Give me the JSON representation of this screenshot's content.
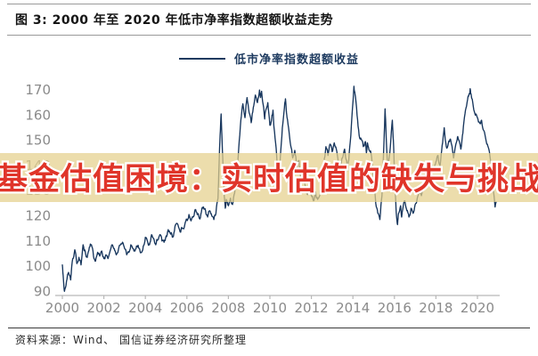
{
  "header": {
    "title": "图 3: 2000 年至 2020 年低市净率指数超额收益走势"
  },
  "legend": {
    "label": "低市净率指数超额收益"
  },
  "watermark": {
    "text": "基金估值困境：实时估值的缺失与挑战",
    "text_color": "#e0352a",
    "band_color": "rgba(228,208,140,0.72)"
  },
  "footer": {
    "source": "资料来源：Wind、 国信证券经济研究所整理"
  },
  "colors": {
    "series_line": "#17365d",
    "axis_line": "#b8b8b8",
    "tick_label": "#8a8a8a"
  },
  "chart_data": {
    "type": "line",
    "title": "图 3: 2000 年至 2020 年低市净率指数超额收益走势",
    "xlabel": "",
    "ylabel": "",
    "xlim": [
      1999.9,
      2021.2
    ],
    "ylim": [
      88,
      175
    ],
    "xticks": [
      2000,
      2002,
      2004,
      2006,
      2008,
      2010,
      2012,
      2014,
      2016,
      2018,
      2020
    ],
    "yticks": [
      90,
      100,
      110,
      120,
      130,
      140,
      150,
      160,
      170
    ],
    "grid": false,
    "legend_position": "top",
    "series": [
      {
        "name": "低市净率指数超额收益",
        "points": [
          [
            2000.0,
            100.5
          ],
          [
            2000.05,
            95
          ],
          [
            2000.1,
            90
          ],
          [
            2000.2,
            94
          ],
          [
            2000.3,
            97.5
          ],
          [
            2000.4,
            94.5
          ],
          [
            2000.5,
            103
          ],
          [
            2000.6,
            106.5
          ],
          [
            2000.7,
            101
          ],
          [
            2000.8,
            103.5
          ],
          [
            2000.9,
            100.5
          ],
          [
            2001.0,
            108.5
          ],
          [
            2001.1,
            106
          ],
          [
            2001.2,
            103.5
          ],
          [
            2001.3,
            107.5
          ],
          [
            2001.4,
            108.5
          ],
          [
            2001.5,
            104
          ],
          [
            2001.6,
            102
          ],
          [
            2001.7,
            105.5
          ],
          [
            2001.8,
            104
          ],
          [
            2001.9,
            106
          ],
          [
            2002.0,
            103
          ],
          [
            2002.1,
            104.5
          ],
          [
            2002.2,
            103
          ],
          [
            2002.3,
            106
          ],
          [
            2002.4,
            108.5
          ],
          [
            2002.5,
            107
          ],
          [
            2002.6,
            104.5
          ],
          [
            2002.7,
            106.5
          ],
          [
            2002.8,
            108.5
          ],
          [
            2002.9,
            109.5
          ],
          [
            2003.0,
            107
          ],
          [
            2003.1,
            104.5
          ],
          [
            2003.2,
            105.5
          ],
          [
            2003.3,
            108.5
          ],
          [
            2003.4,
            107
          ],
          [
            2003.5,
            106
          ],
          [
            2003.6,
            108
          ],
          [
            2003.7,
            107
          ],
          [
            2003.8,
            105.5
          ],
          [
            2003.9,
            108
          ],
          [
            2004.0,
            111.5
          ],
          [
            2004.1,
            110
          ],
          [
            2004.2,
            108.5
          ],
          [
            2004.3,
            112.5
          ],
          [
            2004.4,
            111
          ],
          [
            2004.5,
            108.5
          ],
          [
            2004.6,
            110.5
          ],
          [
            2004.7,
            112.5
          ],
          [
            2004.8,
            110
          ],
          [
            2004.9,
            109.5
          ],
          [
            2005.0,
            112
          ],
          [
            2005.1,
            114.5
          ],
          [
            2005.2,
            113
          ],
          [
            2005.3,
            111.5
          ],
          [
            2005.4,
            114
          ],
          [
            2005.5,
            117
          ],
          [
            2005.6,
            115.5
          ],
          [
            2005.7,
            113.5
          ],
          [
            2005.8,
            115
          ],
          [
            2005.9,
            116.5
          ],
          [
            2006.0,
            118.5
          ],
          [
            2006.1,
            120.5
          ],
          [
            2006.2,
            118
          ],
          [
            2006.3,
            119.5
          ],
          [
            2006.4,
            122.5
          ],
          [
            2006.5,
            120.5
          ],
          [
            2006.6,
            119
          ],
          [
            2006.7,
            121.5
          ],
          [
            2006.8,
            123.5
          ],
          [
            2006.9,
            122
          ],
          [
            2007.0,
            119.5
          ],
          [
            2007.1,
            122
          ],
          [
            2007.2,
            120
          ],
          [
            2007.3,
            118.5
          ],
          [
            2007.4,
            121
          ],
          [
            2007.5,
            127
          ],
          [
            2007.55,
            140
          ],
          [
            2007.6,
            152
          ],
          [
            2007.65,
            160.5
          ],
          [
            2007.7,
            149
          ],
          [
            2007.75,
            138
          ],
          [
            2007.8,
            128
          ],
          [
            2007.85,
            123
          ],
          [
            2007.9,
            126.5
          ],
          [
            2008.0,
            124
          ],
          [
            2008.1,
            127
          ],
          [
            2008.2,
            124.5
          ],
          [
            2008.3,
            129
          ],
          [
            2008.4,
            136
          ],
          [
            2008.5,
            147
          ],
          [
            2008.6,
            158
          ],
          [
            2008.7,
            164.5
          ],
          [
            2008.8,
            159
          ],
          [
            2008.9,
            167
          ],
          [
            2009.0,
            161
          ],
          [
            2009.1,
            157
          ],
          [
            2009.2,
            163
          ],
          [
            2009.3,
            168
          ],
          [
            2009.4,
            165
          ],
          [
            2009.5,
            170
          ],
          [
            2009.55,
            167
          ],
          [
            2009.6,
            169.5
          ],
          [
            2009.7,
            163
          ],
          [
            2009.75,
            158.5
          ],
          [
            2009.8,
            162
          ],
          [
            2009.9,
            165
          ],
          [
            2010.0,
            156
          ],
          [
            2010.1,
            160
          ],
          [
            2010.15,
            162
          ],
          [
            2010.2,
            155
          ],
          [
            2010.3,
            147
          ],
          [
            2010.4,
            133
          ],
          [
            2010.45,
            131
          ],
          [
            2010.5,
            143
          ],
          [
            2010.6,
            155
          ],
          [
            2010.7,
            163
          ],
          [
            2010.75,
            166.5
          ],
          [
            2010.8,
            161
          ],
          [
            2010.9,
            155
          ],
          [
            2011.0,
            148
          ],
          [
            2011.1,
            143
          ],
          [
            2011.2,
            146
          ],
          [
            2011.3,
            139
          ],
          [
            2011.4,
            142
          ],
          [
            2011.5,
            134
          ],
          [
            2011.6,
            138
          ],
          [
            2011.7,
            132
          ],
          [
            2011.8,
            128.5
          ],
          [
            2011.9,
            131.5
          ],
          [
            2012.0,
            128
          ],
          [
            2012.1,
            126
          ],
          [
            2012.2,
            129.5
          ],
          [
            2012.3,
            126.5
          ],
          [
            2012.4,
            128
          ],
          [
            2012.5,
            133
          ],
          [
            2012.6,
            141
          ],
          [
            2012.7,
            147.5
          ],
          [
            2012.8,
            144
          ],
          [
            2012.9,
            148.5
          ],
          [
            2013.0,
            145.5
          ],
          [
            2013.1,
            149
          ],
          [
            2013.2,
            146.5
          ],
          [
            2013.3,
            141
          ],
          [
            2013.4,
            138.5
          ],
          [
            2013.5,
            143
          ],
          [
            2013.6,
            146.5
          ],
          [
            2013.7,
            142
          ],
          [
            2013.75,
            138
          ],
          [
            2013.8,
            142
          ],
          [
            2013.9,
            152
          ],
          [
            2014.0,
            165
          ],
          [
            2014.05,
            171.5
          ],
          [
            2014.1,
            168.5
          ],
          [
            2014.2,
            160
          ],
          [
            2014.3,
            152
          ],
          [
            2014.4,
            150.5
          ],
          [
            2014.5,
            147.5
          ],
          [
            2014.6,
            149.5
          ],
          [
            2014.65,
            145
          ],
          [
            2014.7,
            149
          ],
          [
            2014.8,
            146
          ],
          [
            2014.9,
            143.5
          ],
          [
            2015.0,
            134
          ],
          [
            2015.1,
            125
          ],
          [
            2015.2,
            121
          ],
          [
            2015.3,
            118.5
          ],
          [
            2015.4,
            128
          ],
          [
            2015.5,
            150
          ],
          [
            2015.55,
            162.5
          ],
          [
            2015.6,
            152
          ],
          [
            2015.65,
            143
          ],
          [
            2015.7,
            140.5
          ],
          [
            2015.8,
            147
          ],
          [
            2015.9,
            158
          ],
          [
            2015.95,
            150
          ],
          [
            2016.0,
            138
          ],
          [
            2016.05,
            128
          ],
          [
            2016.1,
            120
          ],
          [
            2016.15,
            116.5
          ],
          [
            2016.2,
            121
          ],
          [
            2016.3,
            124
          ],
          [
            2016.35,
            119.5
          ],
          [
            2016.4,
            122.5
          ],
          [
            2016.5,
            126
          ],
          [
            2016.6,
            122
          ],
          [
            2016.7,
            119.5
          ],
          [
            2016.8,
            123
          ],
          [
            2016.9,
            121
          ],
          [
            2017.0,
            124.5
          ],
          [
            2017.1,
            127
          ],
          [
            2017.2,
            129.5
          ],
          [
            2017.3,
            128
          ],
          [
            2017.4,
            132
          ],
          [
            2017.55,
            135.5
          ],
          [
            2017.7,
            139.5
          ],
          [
            2017.8,
            141
          ],
          [
            2017.9,
            138
          ],
          [
            2018.0,
            141.5
          ],
          [
            2018.1,
            144
          ],
          [
            2018.2,
            140
          ],
          [
            2018.3,
            148
          ],
          [
            2018.4,
            155
          ],
          [
            2018.5,
            147.5
          ],
          [
            2018.6,
            149
          ],
          [
            2018.7,
            150.5
          ],
          [
            2018.85,
            143
          ],
          [
            2019.0,
            149.5
          ],
          [
            2019.05,
            151.5
          ],
          [
            2019.2,
            146.5
          ],
          [
            2019.3,
            153
          ],
          [
            2019.4,
            160.5
          ],
          [
            2019.5,
            165
          ],
          [
            2019.6,
            168.5
          ],
          [
            2019.65,
            170.5
          ],
          [
            2019.7,
            168
          ],
          [
            2019.8,
            163.5
          ],
          [
            2019.9,
            160
          ],
          [
            2020.0,
            159
          ],
          [
            2020.1,
            157
          ],
          [
            2020.2,
            158
          ],
          [
            2020.3,
            154
          ],
          [
            2020.45,
            148.5
          ],
          [
            2020.55,
            146.5
          ],
          [
            2020.65,
            141
          ],
          [
            2020.75,
            131
          ],
          [
            2020.85,
            123.5
          ],
          [
            2020.9,
            125.5
          ]
        ]
      }
    ]
  }
}
